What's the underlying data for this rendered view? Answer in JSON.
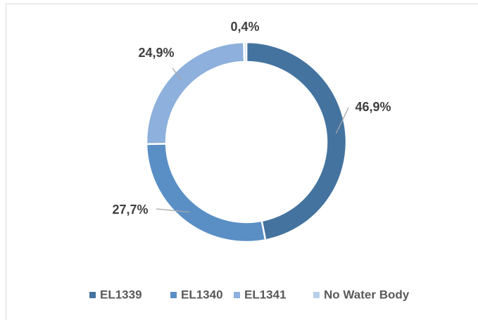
{
  "chart_data": {
    "type": "donut",
    "categories": [
      "EL1339",
      "EL1340",
      "EL1341",
      "No Water Body"
    ],
    "values": [
      46.9,
      27.7,
      24.9,
      0.4
    ],
    "value_labels": [
      "46,9%",
      "27,7%",
      "24,9%",
      "0,4%"
    ],
    "colors": [
      "#44739f",
      "#5a8fc6",
      "#8db0dc",
      "#b8cfea"
    ],
    "legend": "bottom"
  }
}
